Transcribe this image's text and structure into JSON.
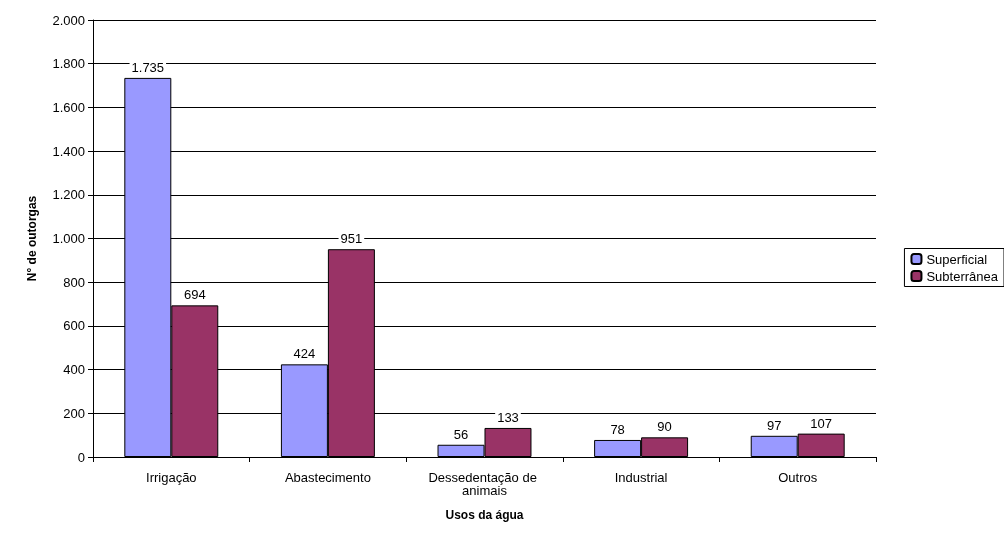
{
  "chart_data": {
    "type": "bar",
    "xlabel": "Usos da água",
    "ylabel": "N° de outorgas",
    "categories": [
      "Irrigação",
      "Abastecimento",
      "Dessedentação de animais",
      "Industrial",
      "Outros"
    ],
    "series": [
      {
        "name": "Superficial",
        "color": "#9999ff",
        "values": [
          1735,
          424,
          56,
          78,
          97
        ],
        "value_labels": [
          "1.735",
          "424",
          "56",
          "78",
          "97"
        ]
      },
      {
        "name": "Subterrânea",
        "color": "#993366",
        "values": [
          694,
          951,
          133,
          90,
          107
        ],
        "value_labels": [
          "694",
          "951",
          "133",
          "90",
          "107"
        ]
      }
    ],
    "ylim": [
      0,
      2000
    ],
    "yticks": [
      0,
      {
        "value": 200,
        "label": "200"
      },
      {
        "value": 400,
        "label": "400"
      },
      {
        "value": 600,
        "label": "600"
      },
      {
        "value": 800,
        "label": "800"
      },
      {
        "value": 1000,
        "label": "1.000"
      },
      {
        "value": 1200,
        "label": "1.200"
      },
      {
        "value": 1400,
        "label": "1.400"
      },
      {
        "value": 1600,
        "label": "1.600"
      },
      {
        "value": 1800,
        "label": "1.800"
      },
      {
        "value": 2000,
        "label": "2.000"
      }
    ],
    "grid": "y",
    "legend": "right"
  }
}
